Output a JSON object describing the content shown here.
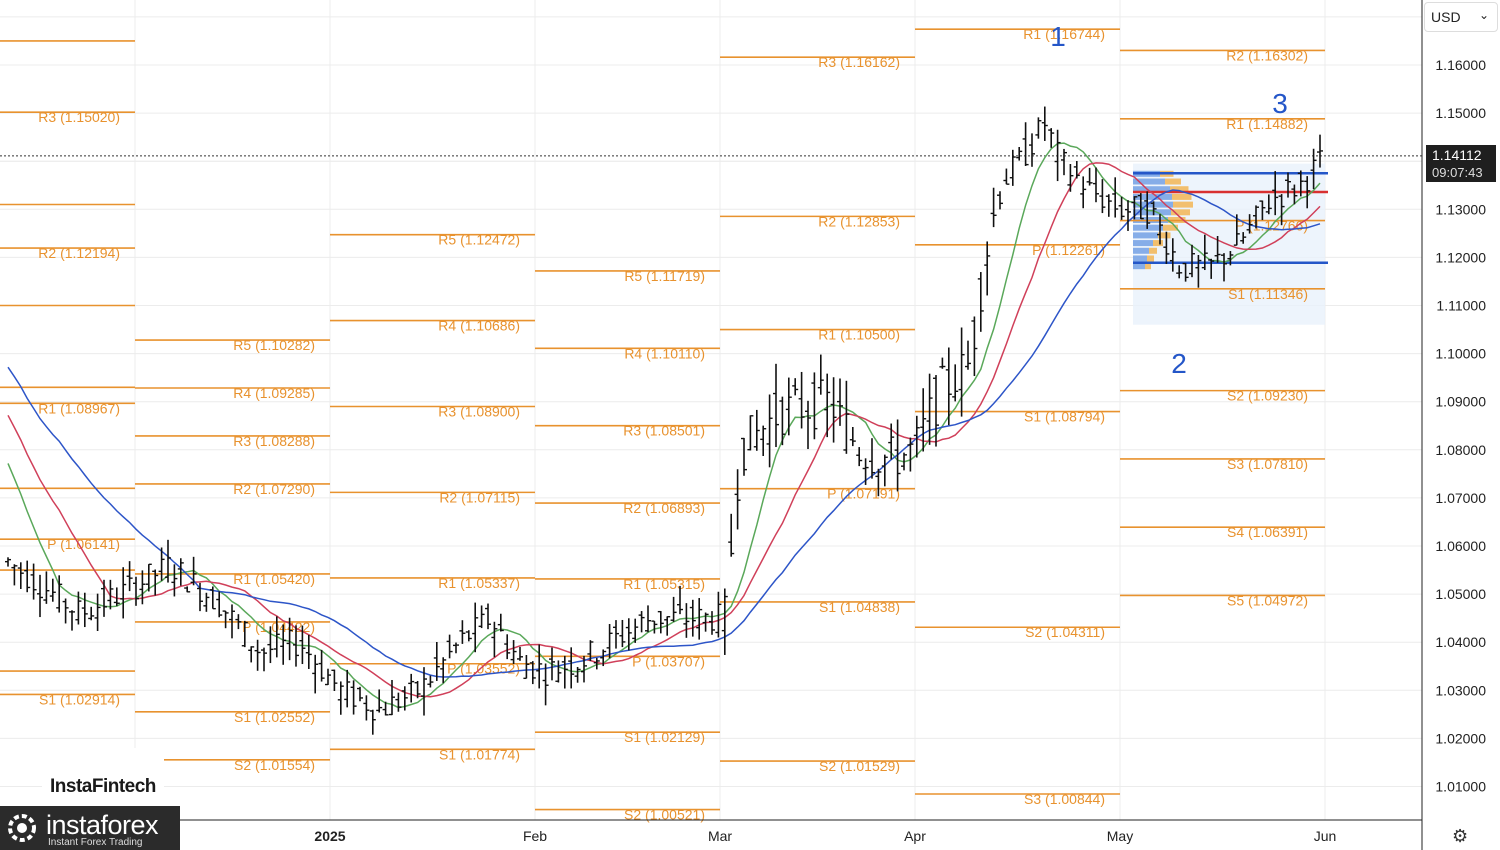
{
  "chart_data": {
    "type": "ohlc-bar",
    "instrument_currency": "USD",
    "current_price": "1.14112",
    "countdown": "09:07:43",
    "y_ticks": [
      "1.16000",
      "1.15000",
      "1.13000",
      "1.12000",
      "1.11000",
      "1.10000",
      "1.09000",
      "1.08000",
      "1.07000",
      "1.06000",
      "1.05000",
      "1.04000",
      "1.03000",
      "1.02000",
      "1.01000"
    ],
    "x_ticks": [
      "2025",
      "Feb",
      "Mar",
      "Apr",
      "May",
      "Jun"
    ],
    "pivot_levels": [
      {
        "label": "R3 (1.15020)",
        "value": 1.1502,
        "period": "Dec"
      },
      {
        "label": "R2 (1.12194)",
        "value": 1.12194,
        "period": "Dec"
      },
      {
        "label": "R1 (1.08967)",
        "value": 1.08967,
        "period": "Dec"
      },
      {
        "label": "P (1.06141)",
        "value": 1.06141,
        "period": "Dec"
      },
      {
        "label": "S1 (1.02914)",
        "value": 1.02914,
        "period": "Dec"
      },
      {
        "label": "R5 (1.10282)",
        "value": 1.10282,
        "period": "Jan"
      },
      {
        "label": "R4 (1.09285)",
        "value": 1.09285,
        "period": "Jan"
      },
      {
        "label": "R3 (1.08288)",
        "value": 1.08288,
        "period": "Jan"
      },
      {
        "label": "R2 (1.07290)",
        "value": 1.0729,
        "period": "Jan"
      },
      {
        "label": "R1 (1.05420)",
        "value": 1.0542,
        "period": "Jan"
      },
      {
        "label": "P (1.04422)",
        "value": 1.04422,
        "period": "Jan"
      },
      {
        "label": "S1 (1.02552)",
        "value": 1.02552,
        "period": "Jan"
      },
      {
        "label": "S2 (1.01554)",
        "value": 1.01554,
        "period": "Jan"
      },
      {
        "label": "R5 (1.12472)",
        "value": 1.12472,
        "period": "Feb"
      },
      {
        "label": "R4 (1.10686)",
        "value": 1.10686,
        "period": "Feb"
      },
      {
        "label": "R3 (1.08900)",
        "value": 1.089,
        "period": "Feb"
      },
      {
        "label": "R2 (1.07115)",
        "value": 1.07115,
        "period": "Feb"
      },
      {
        "label": "R1 (1.05337)",
        "value": 1.05337,
        "period": "Feb"
      },
      {
        "label": "P (1.03552)",
        "value": 1.03552,
        "period": "Feb"
      },
      {
        "label": "S1 (1.01774)",
        "value": 1.01774,
        "period": "Feb"
      },
      {
        "label": "R5 (1.11719)",
        "value": 1.11719,
        "period": "Mar"
      },
      {
        "label": "R4 (1.10110)",
        "value": 1.1011,
        "period": "Mar"
      },
      {
        "label": "R3 (1.08501)",
        "value": 1.08501,
        "period": "Mar"
      },
      {
        "label": "R2 (1.06893)",
        "value": 1.06893,
        "period": "Mar"
      },
      {
        "label": "R1 (1.05315)",
        "value": 1.05315,
        "period": "Mar"
      },
      {
        "label": "P (1.03707)",
        "value": 1.03707,
        "period": "Mar"
      },
      {
        "label": "S1 (1.02129)",
        "value": 1.02129,
        "period": "Mar"
      },
      {
        "label": "S2 (1.00521)",
        "value": 1.00521,
        "period": "Mar"
      },
      {
        "label": "R3 (1.16162)",
        "value": 1.16162,
        "period": "Apr"
      },
      {
        "label": "R2 (1.12853)",
        "value": 1.12853,
        "period": "Apr"
      },
      {
        "label": "R1 (1.10500)",
        "value": 1.105,
        "period": "Apr"
      },
      {
        "label": "P (1.07191)",
        "value": 1.07191,
        "period": "Apr"
      },
      {
        "label": "S1 (1.04838)",
        "value": 1.04838,
        "period": "Apr"
      },
      {
        "label": "S2 (1.01529)",
        "value": 1.01529,
        "period": "Apr"
      },
      {
        "label": "R1 (1.16744)",
        "value": 1.16744,
        "period": "May"
      },
      {
        "label": "P (1.12261)",
        "value": 1.12261,
        "period": "May"
      },
      {
        "label": "S1 (1.08794)",
        "value": 1.08794,
        "period": "May"
      },
      {
        "label": "S2 (1.04311)",
        "value": 1.04311,
        "period": "May"
      },
      {
        "label": "S3 (1.00844)",
        "value": 1.00844,
        "period": "May"
      },
      {
        "label": "R2 (1.16302)",
        "value": 1.16302,
        "period": "Jun"
      },
      {
        "label": "R1 (1.14882)",
        "value": 1.14882,
        "period": "Jun"
      },
      {
        "label": "P (1.12766)",
        "value": 1.12766,
        "period": "Jun"
      },
      {
        "label": "S1 (1.11346)",
        "value": 1.11346,
        "period": "Jun"
      },
      {
        "label": "S2 (1.09230)",
        "value": 1.0923,
        "period": "Jun"
      },
      {
        "label": "S3 (1.07810)",
        "value": 1.0781,
        "period": "Jun"
      },
      {
        "label": "S4 (1.06391)",
        "value": 1.06391,
        "period": "Jun"
      },
      {
        "label": "S5 (1.04972)",
        "value": 1.04972,
        "period": "Jun"
      }
    ],
    "wave_labels": [
      "1",
      "2",
      "3"
    ],
    "colors": {
      "pivot": "#e8922e",
      "bars": "#111111",
      "ma_fast": "#5aa85a",
      "ma_mid": "#d0405a",
      "ma_slow": "#2d55c8",
      "profile": "#2456c8",
      "poc": "#d83030"
    }
  },
  "branding": {
    "insta": "InstaFintech",
    "main": "instaforex",
    "sub": "Instant Forex Trading"
  }
}
